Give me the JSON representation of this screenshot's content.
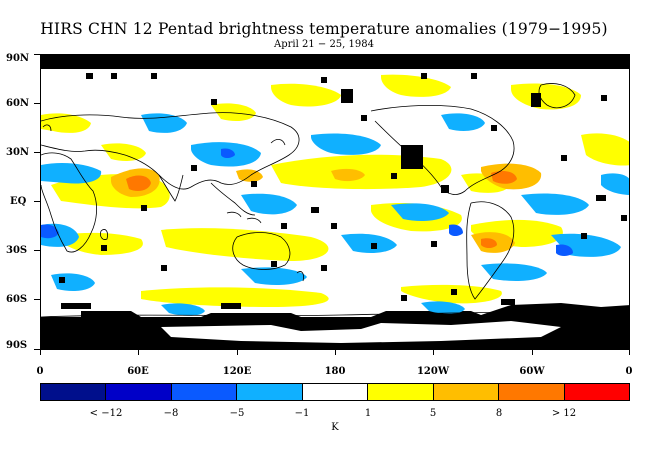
{
  "title": "HIRS CHN 12 Pentad brightness temperature anomalies (1979−1995)",
  "subtitle": "April 21 − 25, 1984",
  "y_labels": [
    "90N",
    "60N",
    "30N",
    "EQ",
    "30S",
    "60S",
    "90S"
  ],
  "x_labels": [
    "0",
    "60E",
    "120E",
    "180",
    "120W",
    "60W",
    "0"
  ],
  "colorbar": {
    "colors": [
      "#000f8c",
      "#0000c8",
      "#0a5aff",
      "#10b0ff",
      "#ffffff",
      "#ffff00",
      "#ffbe00",
      "#ff7800",
      "#ff0000"
    ],
    "labels": [
      "< −12",
      "−8",
      "−5",
      "−1",
      "1",
      "5",
      "8",
      "> 12"
    ],
    "unit": "K"
  },
  "legend_colors": {
    "cold_strong": "#10b0ff",
    "cold_weak": "#0a5aff",
    "warm_weak": "#ffff00",
    "warm_mid": "#ffbe00",
    "warm_strong": "#ff7800",
    "missing": "#000000",
    "coast": "#000000"
  }
}
